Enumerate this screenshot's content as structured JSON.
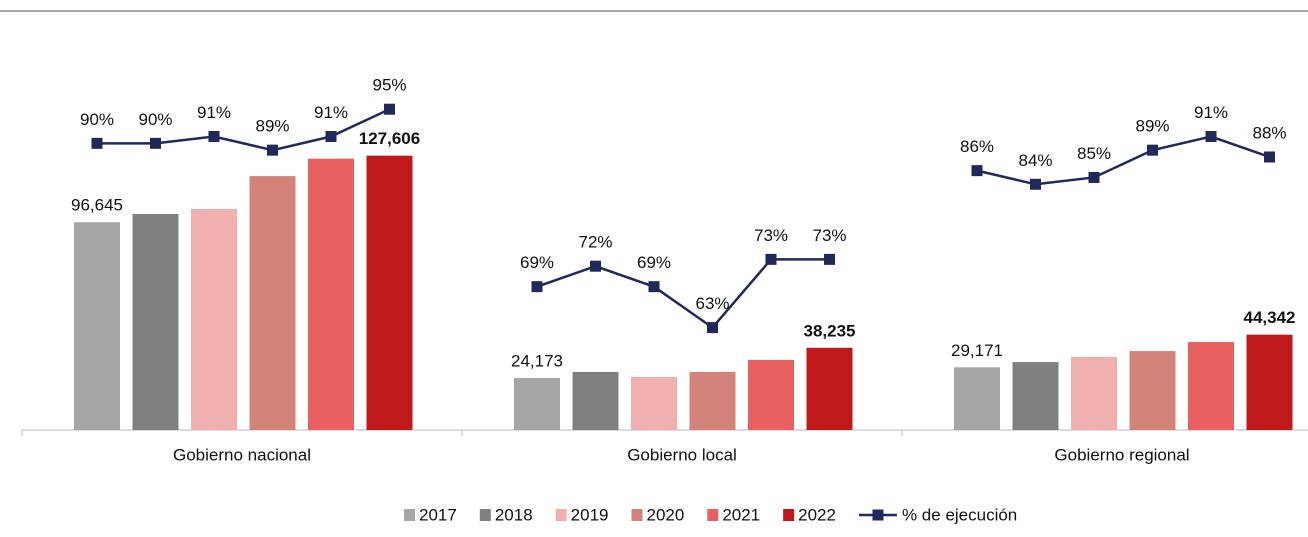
{
  "chart_data": {
    "type": "bar",
    "categories": [
      "Gobierno nacional",
      "Gobierno local",
      "Gobierno regional"
    ],
    "ylim": [
      0,
      200000
    ],
    "y2lim": [
      48,
      111
    ],
    "series": [
      {
        "name": "2017",
        "color": "#a6a6a6",
        "values": [
          96645,
          24173,
          29171
        ],
        "value_labels": [
          "96,645",
          "24,173",
          "29,171"
        ]
      },
      {
        "name": "2018",
        "color": "#7f807f",
        "values": [
          100500,
          27000,
          31600
        ]
      },
      {
        "name": "2019",
        "color": "#f0b0b0",
        "values": [
          102800,
          24700,
          34000
        ]
      },
      {
        "name": "2020",
        "color": "#d4837a",
        "values": [
          118100,
          27000,
          36700
        ]
      },
      {
        "name": "2021",
        "color": "#e86060",
        "values": [
          126200,
          32600,
          40900
        ]
      },
      {
        "name": "2022",
        "color": "#c0191b",
        "values": [
          127606,
          38235,
          44342
        ],
        "value_labels": [
          "127,606",
          "38,235",
          "44,342"
        ],
        "bold_labels": true
      },
      {
        "name": "% de ejecución",
        "type": "line",
        "axis": "y2",
        "color": "#1f2a5a",
        "values": [
          [
            90,
            90,
            91,
            89,
            91,
            95
          ],
          [
            69,
            72,
            69,
            63,
            73,
            73
          ],
          [
            86,
            84,
            85,
            89,
            91,
            88
          ]
        ],
        "value_labels": [
          [
            "90%",
            "90%",
            "91%",
            "89%",
            "91%",
            "95%"
          ],
          [
            "69%",
            "72%",
            "69%",
            "63%",
            "73%",
            "73%"
          ],
          [
            "86%",
            "84%",
            "85%",
            "89%",
            "91%",
            "88%"
          ]
        ]
      }
    ]
  }
}
